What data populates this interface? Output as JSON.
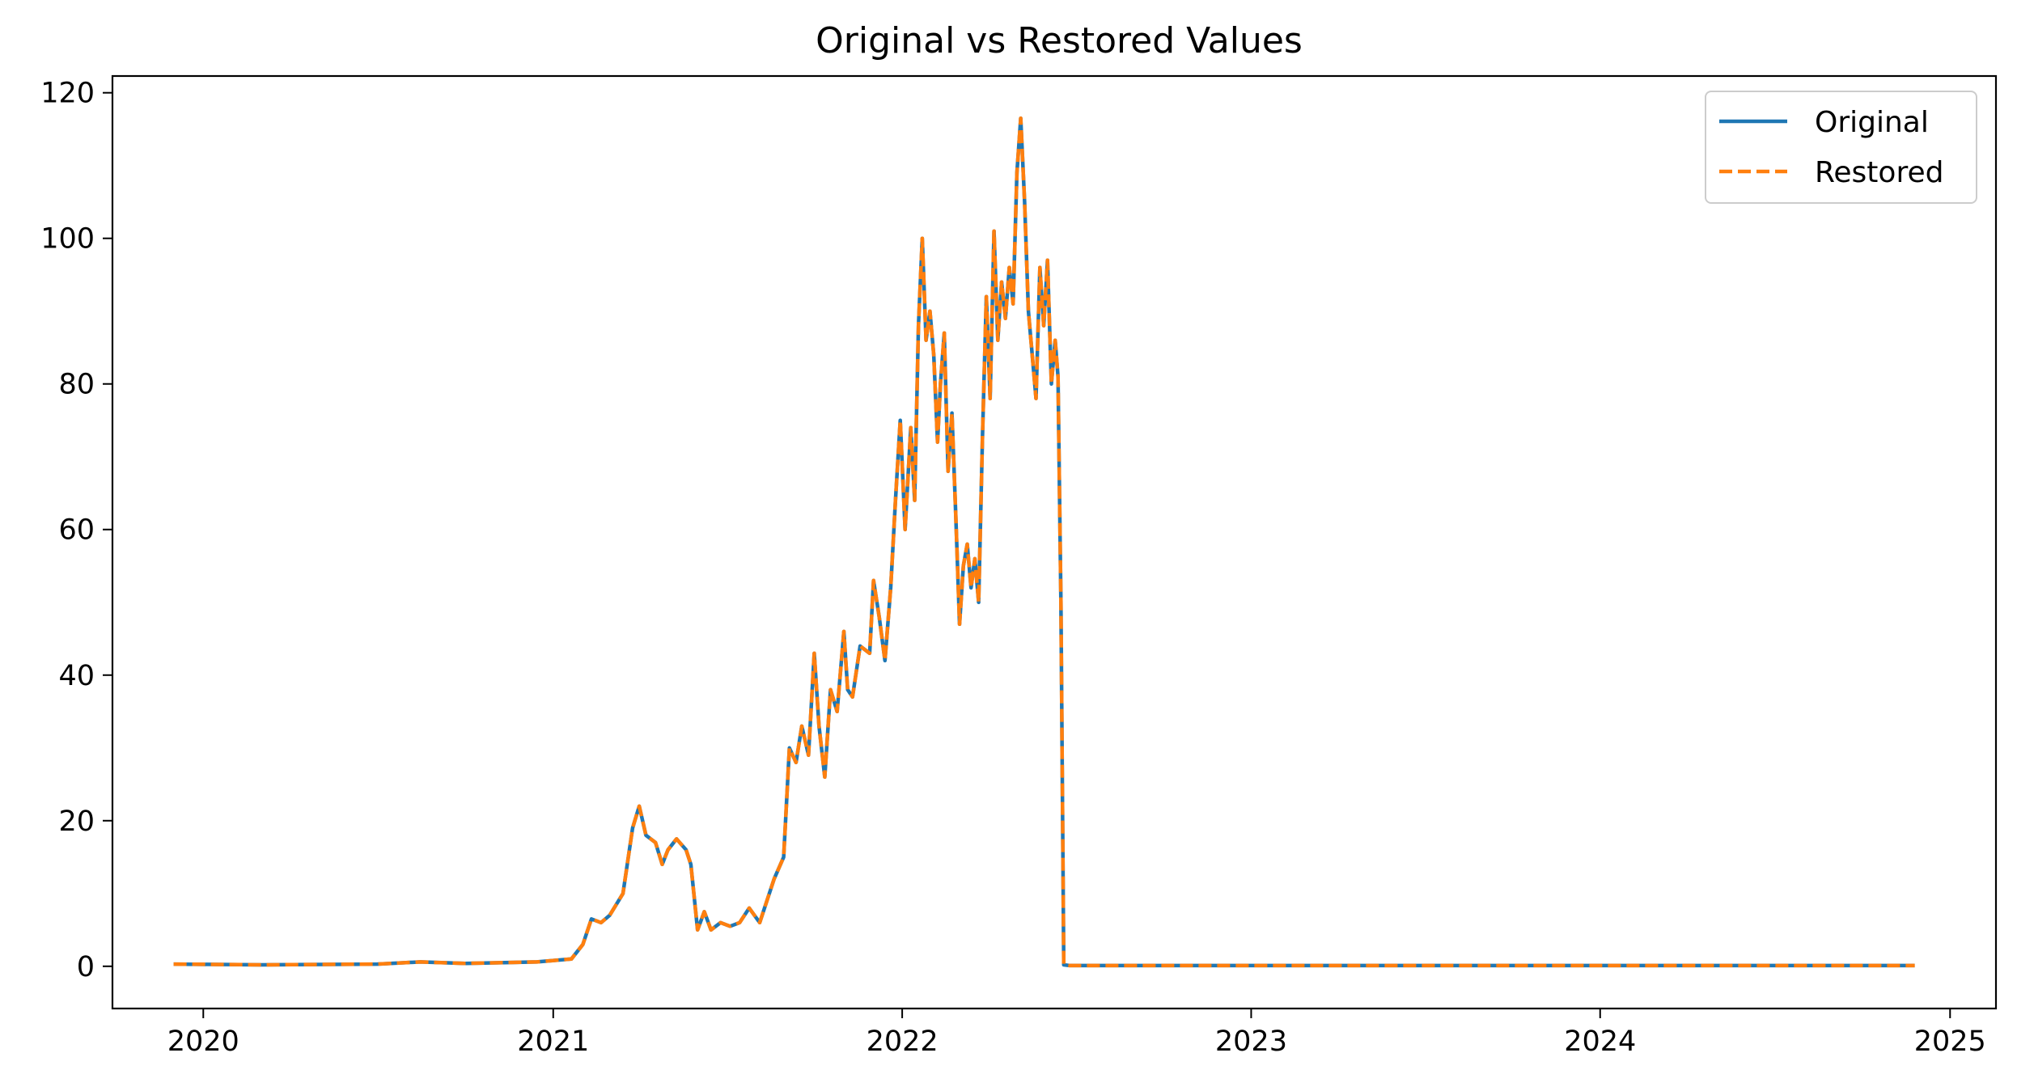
{
  "chart_data": {
    "type": "line",
    "title": "Original vs Restored Values",
    "xlabel": "",
    "ylabel": "",
    "x_axis_type": "date",
    "xlim": [
      "2019-09-28",
      "2025-02-18"
    ],
    "ylim": [
      -5.8,
      122.3
    ],
    "x_ticks": [
      "2020",
      "2021",
      "2022",
      "2023",
      "2024",
      "2025"
    ],
    "x_tick_dates": [
      "2020-01-01",
      "2021-01-01",
      "2022-01-01",
      "2023-01-01",
      "2024-01-01",
      "2025-01-01"
    ],
    "y_ticks": [
      0,
      20,
      40,
      60,
      80,
      100,
      120
    ],
    "grid": false,
    "legend_position": "top-right",
    "series": [
      {
        "name": "Original",
        "color": "#1f77b4",
        "line_style": "solid",
        "points": [
          [
            "2019-12-01",
            0.3
          ],
          [
            "2020-03-01",
            0.2
          ],
          [
            "2020-07-01",
            0.3
          ],
          [
            "2020-08-15",
            0.6
          ],
          [
            "2020-10-01",
            0.4
          ],
          [
            "2020-12-15",
            0.6
          ],
          [
            "2021-01-20",
            1.0
          ],
          [
            "2021-02-01",
            3.0
          ],
          [
            "2021-02-10",
            6.5
          ],
          [
            "2021-02-20",
            6.0
          ],
          [
            "2021-03-01",
            7.0
          ],
          [
            "2021-03-15",
            10.0
          ],
          [
            "2021-03-25",
            19.0
          ],
          [
            "2021-04-01",
            22.0
          ],
          [
            "2021-04-08",
            18.0
          ],
          [
            "2021-04-18",
            17.0
          ],
          [
            "2021-04-25",
            14.0
          ],
          [
            "2021-05-01",
            16.0
          ],
          [
            "2021-05-10",
            17.5
          ],
          [
            "2021-05-20",
            16.0
          ],
          [
            "2021-05-25",
            14.0
          ],
          [
            "2021-06-01",
            5.0
          ],
          [
            "2021-06-08",
            7.5
          ],
          [
            "2021-06-15",
            5.0
          ],
          [
            "2021-06-25",
            6.0
          ],
          [
            "2021-07-05",
            5.5
          ],
          [
            "2021-07-15",
            6.0
          ],
          [
            "2021-07-25",
            8.0
          ],
          [
            "2021-08-05",
            6.0
          ],
          [
            "2021-08-20",
            12.0
          ],
          [
            "2021-08-30",
            15.0
          ],
          [
            "2021-09-05",
            30.0
          ],
          [
            "2021-09-12",
            28.0
          ],
          [
            "2021-09-18",
            33.0
          ],
          [
            "2021-09-25",
            29.0
          ],
          [
            "2021-10-01",
            43.0
          ],
          [
            "2021-10-06",
            33.0
          ],
          [
            "2021-10-12",
            26.0
          ],
          [
            "2021-10-18",
            38.0
          ],
          [
            "2021-10-25",
            35.0
          ],
          [
            "2021-11-01",
            46.0
          ],
          [
            "2021-11-05",
            38.0
          ],
          [
            "2021-11-10",
            37.0
          ],
          [
            "2021-11-18",
            44.0
          ],
          [
            "2021-11-28",
            43.0
          ],
          [
            "2021-12-02",
            53.0
          ],
          [
            "2021-12-08",
            48.0
          ],
          [
            "2021-12-14",
            42.0
          ],
          [
            "2021-12-20",
            52.0
          ],
          [
            "2021-12-25",
            64.0
          ],
          [
            "2021-12-30",
            75.0
          ],
          [
            "2022-01-04",
            60.0
          ],
          [
            "2022-01-10",
            74.0
          ],
          [
            "2022-01-14",
            64.0
          ],
          [
            "2022-01-18",
            88.0
          ],
          [
            "2022-01-22",
            100.0
          ],
          [
            "2022-01-26",
            86.0
          ],
          [
            "2022-01-30",
            90.0
          ],
          [
            "2022-02-03",
            84.0
          ],
          [
            "2022-02-07",
            72.0
          ],
          [
            "2022-02-10",
            80.0
          ],
          [
            "2022-02-14",
            87.0
          ],
          [
            "2022-02-18",
            68.0
          ],
          [
            "2022-02-22",
            76.0
          ],
          [
            "2022-02-26",
            62.0
          ],
          [
            "2022-03-02",
            47.0
          ],
          [
            "2022-03-06",
            55.0
          ],
          [
            "2022-03-10",
            58.0
          ],
          [
            "2022-03-14",
            52.0
          ],
          [
            "2022-03-18",
            56.0
          ],
          [
            "2022-03-22",
            50.0
          ],
          [
            "2022-03-26",
            73.0
          ],
          [
            "2022-03-30",
            92.0
          ],
          [
            "2022-04-03",
            78.0
          ],
          [
            "2022-04-07",
            101.0
          ],
          [
            "2022-04-11",
            86.0
          ],
          [
            "2022-04-15",
            94.0
          ],
          [
            "2022-04-19",
            89.0
          ],
          [
            "2022-04-23",
            96.0
          ],
          [
            "2022-04-27",
            91.0
          ],
          [
            "2022-05-01",
            109.0
          ],
          [
            "2022-05-05",
            116.5
          ],
          [
            "2022-05-09",
            105.0
          ],
          [
            "2022-05-13",
            90.0
          ],
          [
            "2022-05-17",
            84.0
          ],
          [
            "2022-05-21",
            78.0
          ],
          [
            "2022-05-25",
            96.0
          ],
          [
            "2022-05-29",
            88.0
          ],
          [
            "2022-06-02",
            97.0
          ],
          [
            "2022-06-06",
            80.0
          ],
          [
            "2022-06-10",
            86.0
          ],
          [
            "2022-06-13",
            81.0
          ],
          [
            "2022-06-16",
            50.0
          ],
          [
            "2022-06-19",
            0.2
          ],
          [
            "2022-06-25",
            0.1
          ],
          [
            "2024-11-25",
            0.1
          ]
        ]
      },
      {
        "name": "Restored",
        "color": "#ff7f0e",
        "line_style": "dashed",
        "same_points_as": "Original"
      }
    ]
  }
}
